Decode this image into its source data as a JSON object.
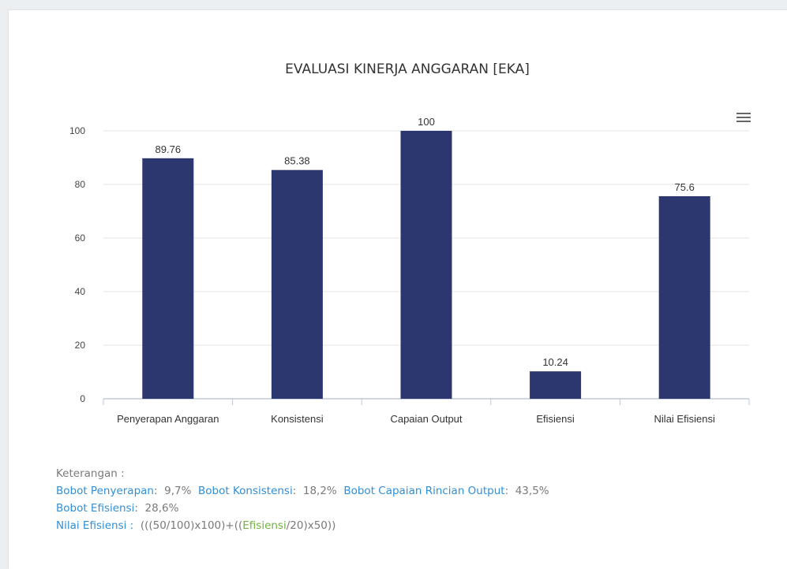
{
  "chart_data": {
    "type": "bar",
    "title": "EVALUASI KINERJA ANGGARAN [EKA]",
    "xlabel": "",
    "ylabel": "",
    "categories": [
      "Penyerapan Anggaran",
      "Konsistensi",
      "Capaian Output",
      "Efisiensi",
      "Nilai Efisiensi"
    ],
    "values": [
      89.76,
      85.38,
      100,
      10.24,
      75.6
    ],
    "data_labels": [
      "89.76",
      "85.38",
      "100",
      "10.24",
      "75.6"
    ],
    "ylim": [
      0,
      100
    ],
    "yticks": [
      0,
      20,
      40,
      60,
      80,
      100
    ],
    "bar_color": "#2c3770",
    "grid": true,
    "legend": "none"
  },
  "menu_icon": "hamburger-menu-icon",
  "notes": {
    "heading": "Keterangan :",
    "bobot_penyerapan_label": "Bobot Penyerapan",
    "bobot_penyerapan_value": "9,7%",
    "bobot_konsistensi_label": "Bobot Konsistensi",
    "bobot_konsistensi_value": "18,2%",
    "bobot_capaian_label": "Bobot Capaian Rincian Output",
    "bobot_capaian_value": "43,5%",
    "bobot_efisiensi_label": "Bobot Efisiensi",
    "bobot_efisiensi_value": "28,6%",
    "nilai_efisiensi_label": "Nilai Efisiensi :",
    "formula_prefix": "(((50/100)x100)+((",
    "formula_highlight": "Efisiensi",
    "formula_suffix": "/20)x50))"
  },
  "colors": {
    "bar": "#2c3770",
    "label_blue": "#2f8fd8",
    "label_green": "#6fb33f",
    "text_gray": "#7a7a7a"
  }
}
